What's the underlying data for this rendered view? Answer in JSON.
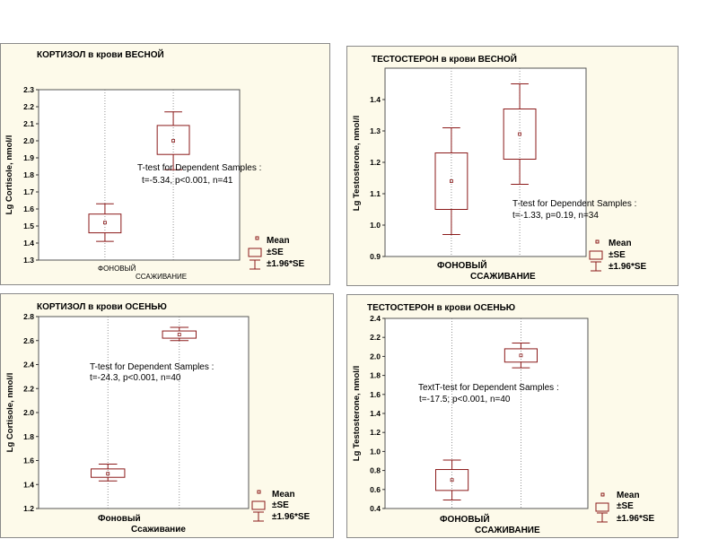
{
  "colors": {
    "box": "#8b1a1a",
    "panel_bg": "#fdfaea",
    "plot_bg": "#ffffff",
    "grid": "#7a7a7a"
  },
  "legend": {
    "mean": "Mean",
    "se": "±SE",
    "ci": "±1.96*SE"
  },
  "chart_data": [
    {
      "type": "box",
      "title": "КОРТИЗОЛ в крови ВЕСНОЙ",
      "ylabel": "Lg Cortisole, nmol/l",
      "ylim": [
        1.3,
        2.3
      ],
      "yticks": [
        "1.3",
        "1.4",
        "1.5",
        "1.6",
        "1.7",
        "1.8",
        "1.9",
        "2.0",
        "2.1",
        "2.2",
        "2.3"
      ],
      "categories": [
        "ФОНОВЫЙ",
        "ССАЖИВАНИЕ"
      ],
      "groups": [
        {
          "mean": 1.52,
          "se_low": 1.46,
          "se_high": 1.57,
          "ci_low": 1.41,
          "ci_high": 1.63
        },
        {
          "mean": 2.0,
          "se_low": 1.92,
          "se_high": 2.09,
          "ci_low": 1.83,
          "ci_high": 2.17
        }
      ],
      "annotation": [
        "T-test for Dependent Samples :",
        "t=-5.34, p<0.001, n=41"
      ]
    },
    {
      "type": "box",
      "title": "ТЕСТОСТЕРОН в крови ВЕСНОЙ",
      "ylabel": "Lg Testosterone, nmol/l",
      "ylim": [
        0.9,
        1.5
      ],
      "yticks": [
        "0.9",
        "1.0",
        "1.1",
        "1.2",
        "1.3",
        "1.4"
      ],
      "categories": [
        "ФОНОВЫЙ",
        "ССАЖИВАНИЕ"
      ],
      "groups": [
        {
          "mean": 1.14,
          "se_low": 1.05,
          "se_high": 1.23,
          "ci_low": 0.97,
          "ci_high": 1.31
        },
        {
          "mean": 1.29,
          "se_low": 1.21,
          "se_high": 1.37,
          "ci_low": 1.13,
          "ci_high": 1.45
        }
      ],
      "annotation": [
        "T-test for Dependent Samples :",
        "t=-1.33, p=0.19, n=34"
      ]
    },
    {
      "type": "box",
      "title": "КОРТИЗОЛ  в крови ОСЕНЬЮ",
      "ylabel": "Lg Cortisole, nmol/l",
      "ylim": [
        1.2,
        2.8
      ],
      "yticks": [
        "1.2",
        "1.4",
        "1.6",
        "1.8",
        "2.0",
        "2.2",
        "2.4",
        "2.6",
        "2.8"
      ],
      "categories": [
        "Фоновый",
        "Ссаживание"
      ],
      "groups": [
        {
          "mean": 1.49,
          "se_low": 1.46,
          "se_high": 1.53,
          "ci_low": 1.43,
          "ci_high": 1.57
        },
        {
          "mean": 2.65,
          "se_low": 2.62,
          "se_high": 2.68,
          "ci_low": 2.6,
          "ci_high": 2.71
        }
      ],
      "annotation": [
        "T-test for Dependent Samples  :",
        "t=-24.3, p<0.001, n=40"
      ]
    },
    {
      "type": "box",
      "title": "ТЕСТОСТЕРОН в крови ОСЕНЬЮ",
      "ylabel": "Lg Testosterone, nmol/l",
      "ylim": [
        0.4,
        2.4
      ],
      "yticks": [
        "0.4",
        "0.6",
        "0.8",
        "1.0",
        "1.2",
        "1.4",
        "1.6",
        "1.8",
        "2.0",
        "2.2",
        "2.4"
      ],
      "categories": [
        "ФОНОВЫЙ",
        "ССАЖИВАНИЕ"
      ],
      "groups": [
        {
          "mean": 0.7,
          "se_low": 0.59,
          "se_high": 0.81,
          "ci_low": 0.49,
          "ci_high": 0.91
        },
        {
          "mean": 2.01,
          "se_low": 1.94,
          "se_high": 2.08,
          "ci_low": 1.88,
          "ci_high": 2.14
        }
      ],
      "annotation": [
        "TextT-test for Dependent Samples  :",
        "t=-17.5; p<0.001, n=40"
      ]
    }
  ]
}
